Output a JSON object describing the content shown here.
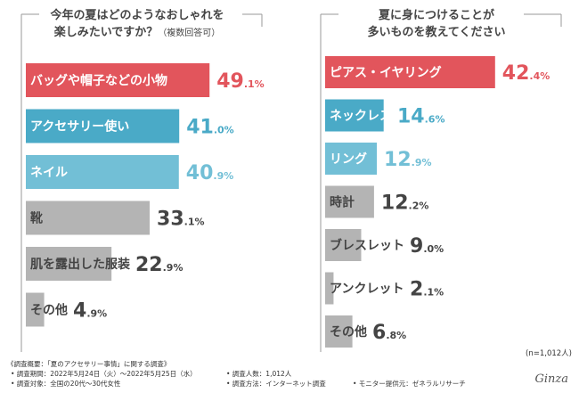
{
  "chart_data": [
    {
      "type": "bar",
      "orientation": "horizontal",
      "title_lines": [
        "今年の夏はどのようなおしゃれを",
        "楽しみたいですか？"
      ],
      "title_note": "（複数回答可）",
      "categories": [
        "バッグや帽子などの小物",
        "アクセサリー使い",
        "ネイル",
        "靴",
        "肌を露出した服装",
        "その他"
      ],
      "values": [
        49.1,
        41.0,
        40.9,
        33.1,
        22.9,
        4.9
      ],
      "value_labels": [
        {
          "int": "49",
          "dec": ".1%"
        },
        {
          "int": "41",
          "dec": ".0%"
        },
        {
          "int": "40",
          "dec": ".9%"
        },
        {
          "int": "33",
          "dec": ".1%"
        },
        {
          "int": "22",
          "dec": ".9%"
        },
        {
          "int": "4",
          "dec": ".9%"
        }
      ],
      "bar_colors": [
        "#e2555c",
        "#4aaac7",
        "#72bfd6",
        "#b4b4b4",
        "#b4b4b4",
        "#b4b4b4"
      ],
      "label_colors": [
        "#e2555c",
        "#4aaac7",
        "#72bfd6",
        "#444444",
        "#444444",
        "#444444"
      ],
      "xlim": [
        0,
        50
      ]
    },
    {
      "type": "bar",
      "orientation": "horizontal",
      "title_lines": [
        "夏に身につけることが",
        "多いものを教えてください"
      ],
      "title_note": "",
      "categories": [
        "ピアス・イヤリング",
        "ネックレス",
        "リング",
        "時計",
        "ブレスレット",
        "アンクレット",
        "その他"
      ],
      "values": [
        42.4,
        14.6,
        12.9,
        12.2,
        9.0,
        2.1,
        6.8
      ],
      "value_labels": [
        {
          "int": "42",
          "dec": ".4%"
        },
        {
          "int": "14",
          "dec": ".6%"
        },
        {
          "int": "12",
          "dec": ".9%"
        },
        {
          "int": "12",
          "dec": ".2%"
        },
        {
          "int": "9",
          "dec": ".0%"
        },
        {
          "int": "2",
          "dec": ".1%"
        },
        {
          "int": "6",
          "dec": ".8%"
        }
      ],
      "bar_colors": [
        "#e2555c",
        "#4aaac7",
        "#72bfd6",
        "#b4b4b4",
        "#b4b4b4",
        "#b4b4b4",
        "#b4b4b4"
      ],
      "label_colors": [
        "#e2555c",
        "#4aaac7",
        "#72bfd6",
        "#444444",
        "#444444",
        "#444444",
        "#444444"
      ],
      "xlim": [
        0,
        50
      ]
    }
  ],
  "sample_note": "(n=1,012人)",
  "footer": {
    "overview": "《調査概要：「夏のアクセサリー事情」に関する調査》",
    "period": "• 調査期間：2022年5月24日（火）〜2022年5月25日（水）",
    "target": "• 調査対象：全国の20代〜30代女性",
    "count": "• 調査人数：1,012人",
    "method": "• 調査方法：インターネット調査",
    "provider": "• モニター提供元：ゼネラルリサーチ"
  },
  "logo_text": "Ginza"
}
